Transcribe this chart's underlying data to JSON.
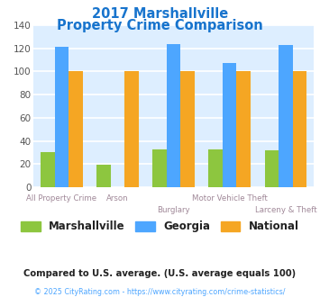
{
  "title_line1": "2017 Marshallville",
  "title_line2": "Property Crime Comparison",
  "title_color": "#1874cd",
  "categories": [
    "All Property Crime",
    "Arson",
    "Burglary",
    "Motor Vehicle Theft",
    "Larceny & Theft"
  ],
  "marshallville": [
    30,
    19,
    33,
    33,
    32
  ],
  "georgia": [
    121,
    0,
    124,
    107,
    123
  ],
  "national": [
    100,
    100,
    100,
    100,
    100
  ],
  "color_marshallville": "#8dc63f",
  "color_georgia": "#4da6ff",
  "color_national": "#f5a623",
  "ylim": [
    0,
    140
  ],
  "yticks": [
    0,
    20,
    40,
    60,
    80,
    100,
    120,
    140
  ],
  "plot_bg_color": "#ddeeff",
  "fig_bg_color": "#ffffff",
  "grid_color": "#ffffff",
  "legend_labels": [
    "Marshallville",
    "Georgia",
    "National"
  ],
  "footnote1": "Compared to U.S. average. (U.S. average equals 100)",
  "footnote2": "© 2025 CityRating.com - https://www.cityrating.com/crime-statistics/",
  "footnote1_color": "#222222",
  "footnote2_color": "#4da6ff",
  "xlabel_color": "#a08898",
  "row1_indices": [
    0,
    1,
    3
  ],
  "row2_indices": [
    2,
    4
  ],
  "row1_labels": [
    "All Property Crime",
    "Arson",
    "Motor Vehicle Theft"
  ],
  "row2_labels": [
    "Burglary",
    "Larceny & Theft"
  ]
}
